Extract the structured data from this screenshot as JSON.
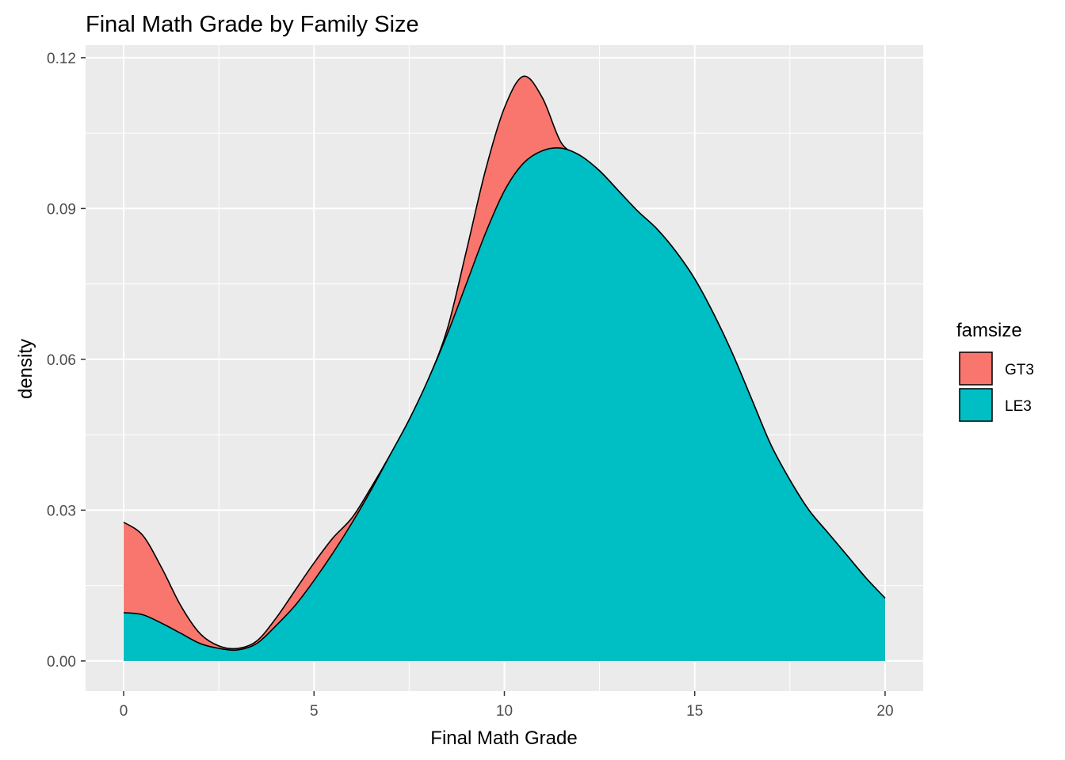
{
  "chart_data": {
    "type": "area",
    "title": "Final Math Grade by Family Size",
    "xlabel": "Final Math Grade",
    "ylabel": "density",
    "xlim": [
      -1,
      21
    ],
    "ylim": [
      -0.006,
      0.1225
    ],
    "x_ticks": [
      0,
      5,
      10,
      15,
      20
    ],
    "x_tick_labels": [
      "0",
      "5",
      "10",
      "15",
      "20"
    ],
    "y_ticks": [
      0.0,
      0.03,
      0.06,
      0.09,
      0.12
    ],
    "y_tick_labels": [
      "0.00",
      "0.03",
      "0.06",
      "0.09",
      "0.12"
    ],
    "grid": true,
    "legend": {
      "title": "famsize",
      "placement": "right",
      "entries": [
        {
          "name": "GT3",
          "color": "#F8766D"
        },
        {
          "name": "LE3",
          "color": "#00BFC4"
        }
      ]
    },
    "series": [
      {
        "name": "GT3",
        "color": "#F8766D",
        "x": [
          0,
          0.5,
          1,
          1.5,
          2,
          2.5,
          3,
          3.5,
          4,
          4.5,
          5,
          5.5,
          6,
          6.5,
          7,
          7.5,
          8,
          8.5,
          9,
          9.5,
          10,
          10.5,
          11,
          11.5,
          12,
          12.5,
          13,
          13.5,
          14,
          14.5,
          15,
          15.5,
          16,
          16.5,
          17,
          17.5,
          18,
          18.5,
          19,
          19.5,
          20
        ],
        "values": [
          0.0276,
          0.025,
          0.0185,
          0.011,
          0.0055,
          0.003,
          0.0025,
          0.004,
          0.0085,
          0.014,
          0.0195,
          0.0245,
          0.0285,
          0.0345,
          0.041,
          0.048,
          0.056,
          0.066,
          0.0815,
          0.0975,
          0.11,
          0.1163,
          0.112,
          0.103,
          0.1005,
          0.0975,
          0.0935,
          0.0895,
          0.086,
          0.0815,
          0.076,
          0.069,
          0.061,
          0.052,
          0.043,
          0.036,
          0.03,
          0.0255,
          0.021,
          0.0165,
          0.0125
        ]
      },
      {
        "name": "LE3",
        "color": "#00BFC4",
        "x": [
          0,
          0.5,
          1,
          1.5,
          2,
          2.5,
          3,
          3.5,
          4,
          4.5,
          5,
          5.5,
          6,
          6.5,
          7,
          7.5,
          8,
          8.5,
          9,
          9.5,
          10,
          10.5,
          11,
          11.5,
          12,
          12.5,
          13,
          13.5,
          14,
          14.5,
          15,
          15.5,
          16,
          16.5,
          17,
          17.5,
          18,
          18.5,
          19,
          19.5,
          20
        ],
        "values": [
          0.0096,
          0.0092,
          0.0075,
          0.0055,
          0.0035,
          0.0025,
          0.0022,
          0.0035,
          0.007,
          0.011,
          0.016,
          0.0215,
          0.0275,
          0.034,
          0.041,
          0.048,
          0.056,
          0.065,
          0.075,
          0.085,
          0.0935,
          0.099,
          0.1015,
          0.102,
          0.1005,
          0.0975,
          0.0935,
          0.0895,
          0.086,
          0.0815,
          0.076,
          0.069,
          0.061,
          0.052,
          0.043,
          0.036,
          0.03,
          0.0255,
          0.021,
          0.0165,
          0.0125
        ]
      }
    ]
  }
}
